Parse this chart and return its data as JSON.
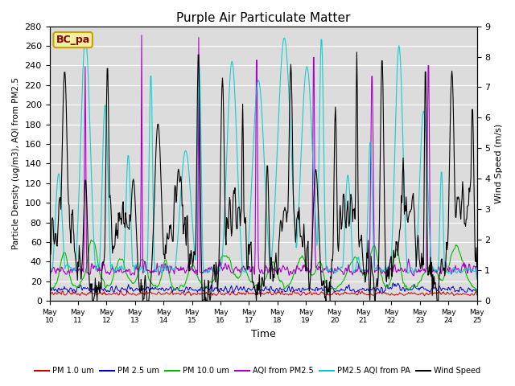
{
  "title": "Purple Air Particulate Matter",
  "xlabel": "Time",
  "ylabel_left": "Particle Density (ug/m3), AQI from PM2.5",
  "ylabel_right": "Wind Speed (m/s)",
  "ylim_left": [
    0,
    280
  ],
  "ylim_right": [
    0.0,
    9.0
  ],
  "yticks_left": [
    0,
    20,
    40,
    60,
    80,
    100,
    120,
    140,
    160,
    180,
    200,
    220,
    240,
    260,
    280
  ],
  "yticks_right": [
    0.0,
    1.0,
    2.0,
    3.0,
    4.0,
    5.0,
    6.0,
    7.0,
    8.0,
    9.0
  ],
  "xtick_labels": [
    "May 10",
    "May 11",
    "May 12",
    "May 13",
    "May 14",
    "May 15",
    "May 16",
    "May 17",
    "May 18",
    "May 19",
    "May 20",
    "May 21",
    "May 22",
    "May 23",
    "May 24",
    "May 25"
  ],
  "annotation_text": "BC_pa",
  "colors": {
    "pm1": "#cc0000",
    "pm25": "#0000cc",
    "pm10": "#00bb00",
    "aqi_pm25": "#aa00cc",
    "aqi_pa": "#00cccc",
    "wind": "#000000"
  },
  "legend_labels": [
    "PM 1.0 um",
    "PM 2.5 um",
    "PM 10.0 um",
    "AQI from PM2.5",
    "PM2.5 AQI from PA",
    "Wind Speed"
  ],
  "plot_bg": "#dcdcdc",
  "fig_bg": "#ffffff"
}
